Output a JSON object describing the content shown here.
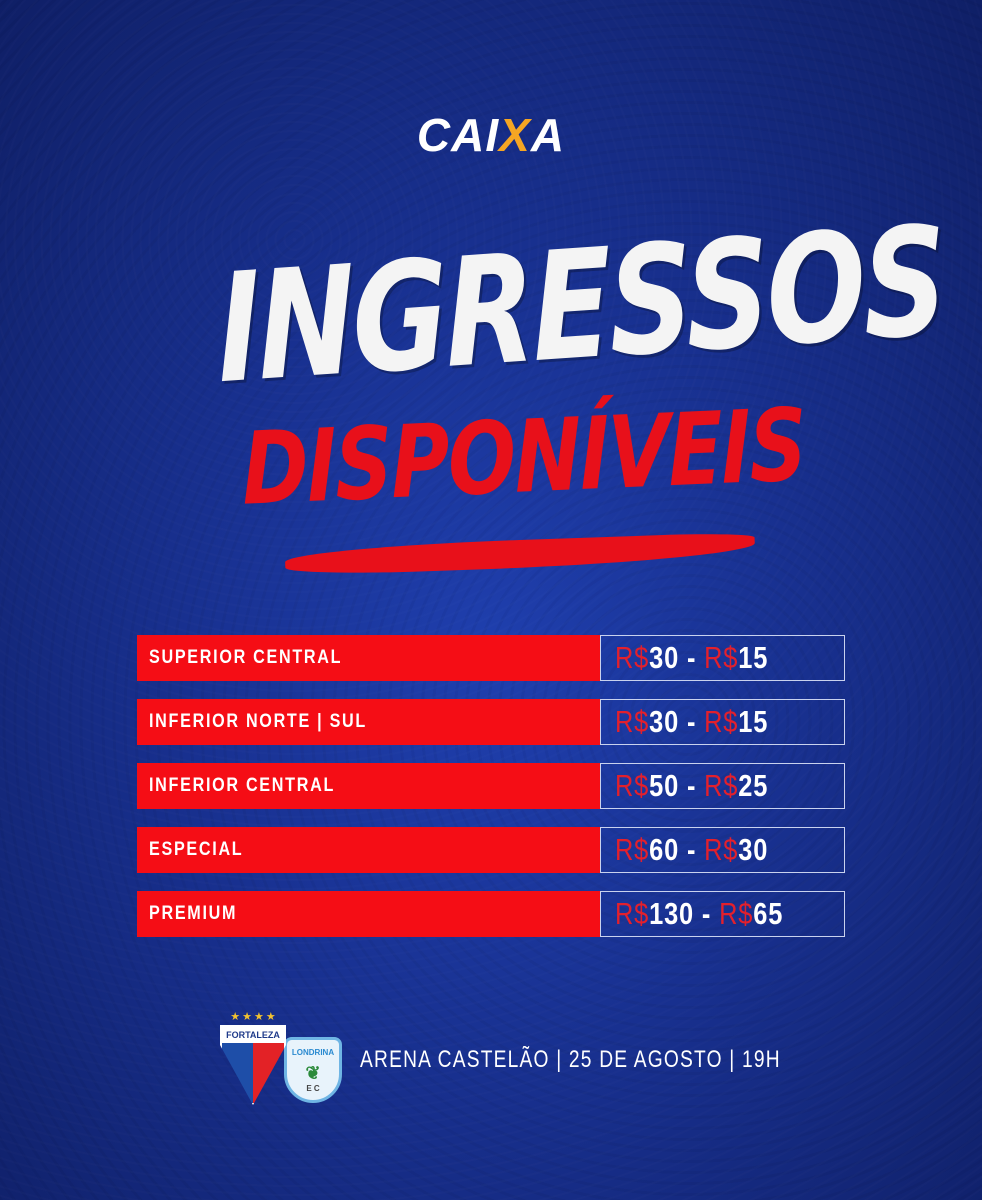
{
  "sponsor": {
    "logo_text": "CAIXA",
    "accent": "#f6a623"
  },
  "headline": {
    "line1": "INGRESSOS",
    "line2": "DISPONÍVEIS"
  },
  "colors": {
    "red": "#f50d15",
    "background": "#18308f"
  },
  "prices": [
    {
      "sector": "SUPERIOR CENTRAL",
      "full_currency": "R$",
      "full": "30",
      "sep": " - ",
      "half_currency": "R$",
      "half": "15"
    },
    {
      "sector": "INFERIOR NORTE | SUL",
      "full_currency": "R$",
      "full": "30",
      "sep": " - ",
      "half_currency": "R$",
      "half": "15"
    },
    {
      "sector": "INFERIOR CENTRAL",
      "full_currency": "R$",
      "full": "50",
      "sep": " - ",
      "half_currency": "R$",
      "half": "25"
    },
    {
      "sector": "ESPECIAL",
      "full_currency": "R$",
      "full": "60",
      "sep": " - ",
      "half_currency": "R$",
      "half": "30"
    },
    {
      "sector": "PREMIUM",
      "full_currency": "R$",
      "full": "130",
      "sep": " - ",
      "half_currency": "R$",
      "half": "65"
    }
  ],
  "match": {
    "home": "FORTALEZA",
    "away": "LONDRINA",
    "away_initials": "E C",
    "info": "ARENA CASTELÃO | 25 DE AGOSTO | 19H"
  }
}
